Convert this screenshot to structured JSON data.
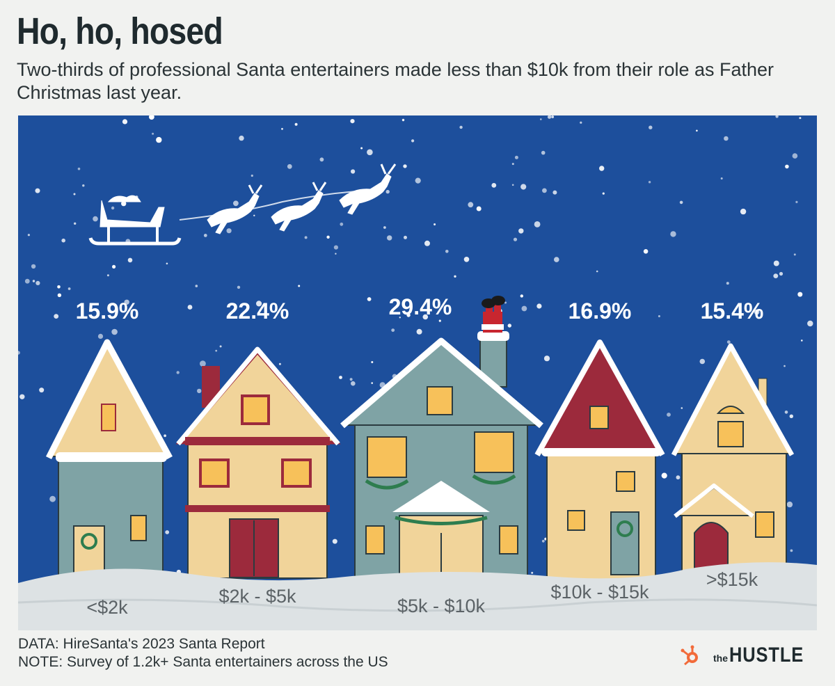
{
  "header": {
    "title": "Ho, ho, hosed",
    "subtitle": "Two-thirds of professional Santa entertainers made less than $10k from their role as Father Christmas last year."
  },
  "chart_data": {
    "type": "bar",
    "title": "Ho, ho, hosed",
    "subtitle": "Two-thirds of professional Santa entertainers made less than $10k from their role as Father Christmas last year.",
    "categories": [
      "<$2k",
      "$2k - $5k",
      "$5k - $10k",
      "$10k - $15k",
      ">$15k"
    ],
    "values": [
      15.9,
      22.4,
      29.4,
      16.9,
      15.4
    ],
    "value_labels": [
      "15.9%",
      "22.4%",
      "29.4%",
      "16.9%",
      "15.4%"
    ],
    "unit": "%",
    "xlabel": "",
    "ylabel": "",
    "ylim": [
      0,
      30
    ],
    "grid": false,
    "representation": "house illustrations sized by share"
  },
  "footer": {
    "data_source": "DATA: HireSanta's 2023 Santa Report",
    "note": "NOTE: Survey of 1.2k+ Santa entertainers across the US"
  },
  "brand": {
    "prefix": "the",
    "name": "HUSTLE"
  },
  "colors": {
    "sky": "#1d4f9c",
    "snow": "#ffffff",
    "ground": "#dde2e4",
    "house_yellow": "#f1d49a",
    "house_teal": "#7fa3a5",
    "roof_red": "#9c2a3c",
    "window_glow": "#f7c15a",
    "brand_orange": "#f26b3a"
  }
}
